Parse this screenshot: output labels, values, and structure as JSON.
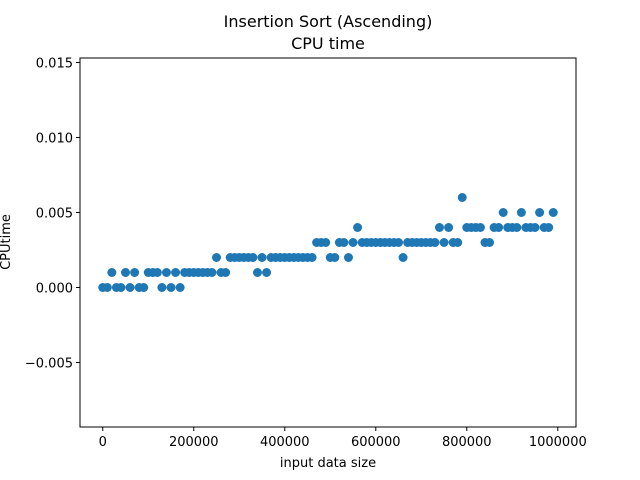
{
  "chart_data": {
    "type": "scatter",
    "title": "Insertion Sort (Ascending)",
    "subtitle": "CPU time",
    "xlabel": "input data size",
    "ylabel": "CPUtime",
    "xlim": [
      -50000,
      1040000
    ],
    "ylim": [
      -0.0093,
      0.0153
    ],
    "xticks": [
      0,
      200000,
      400000,
      600000,
      800000,
      1000000
    ],
    "xtick_labels": [
      "0",
      "200000",
      "400000",
      "600000",
      "800000",
      "1000000"
    ],
    "yticks": [
      -0.005,
      0.0,
      0.005,
      0.01,
      0.015
    ],
    "ytick_labels": [
      "−0.005",
      "0.000",
      "0.005",
      "0.010",
      "0.015"
    ],
    "grid": false,
    "marker_color": "#1f77b4",
    "points": [
      [
        0,
        0.0
      ],
      [
        10000,
        0.0
      ],
      [
        20000,
        0.001
      ],
      [
        30000,
        0.0
      ],
      [
        40000,
        0.0
      ],
      [
        50000,
        0.001
      ],
      [
        60000,
        0.0
      ],
      [
        70000,
        0.001
      ],
      [
        80000,
        0.0
      ],
      [
        90000,
        0.0
      ],
      [
        100000,
        0.001
      ],
      [
        110000,
        0.001
      ],
      [
        120000,
        0.001
      ],
      [
        130000,
        0.0
      ],
      [
        140000,
        0.001
      ],
      [
        150000,
        0.0
      ],
      [
        160000,
        0.001
      ],
      [
        170000,
        0.0
      ],
      [
        180000,
        0.001
      ],
      [
        190000,
        0.001
      ],
      [
        200000,
        0.001
      ],
      [
        210000,
        0.001
      ],
      [
        220000,
        0.001
      ],
      [
        230000,
        0.001
      ],
      [
        240000,
        0.001
      ],
      [
        250000,
        0.002
      ],
      [
        260000,
        0.001
      ],
      [
        270000,
        0.001
      ],
      [
        280000,
        0.002
      ],
      [
        290000,
        0.002
      ],
      [
        300000,
        0.002
      ],
      [
        310000,
        0.002
      ],
      [
        320000,
        0.002
      ],
      [
        330000,
        0.002
      ],
      [
        340000,
        0.001
      ],
      [
        350000,
        0.002
      ],
      [
        360000,
        0.001
      ],
      [
        370000,
        0.002
      ],
      [
        380000,
        0.002
      ],
      [
        390000,
        0.002
      ],
      [
        400000,
        0.002
      ],
      [
        410000,
        0.002
      ],
      [
        420000,
        0.002
      ],
      [
        430000,
        0.002
      ],
      [
        440000,
        0.002
      ],
      [
        450000,
        0.002
      ],
      [
        460000,
        0.002
      ],
      [
        470000,
        0.003
      ],
      [
        480000,
        0.003
      ],
      [
        490000,
        0.003
      ],
      [
        500000,
        0.002
      ],
      [
        510000,
        0.002
      ],
      [
        520000,
        0.003
      ],
      [
        530000,
        0.003
      ],
      [
        540000,
        0.002
      ],
      [
        550000,
        0.003
      ],
      [
        560000,
        0.004
      ],
      [
        570000,
        0.003
      ],
      [
        580000,
        0.003
      ],
      [
        590000,
        0.003
      ],
      [
        600000,
        0.003
      ],
      [
        610000,
        0.003
      ],
      [
        620000,
        0.003
      ],
      [
        630000,
        0.003
      ],
      [
        640000,
        0.003
      ],
      [
        650000,
        0.003
      ],
      [
        660000,
        0.002
      ],
      [
        670000,
        0.003
      ],
      [
        680000,
        0.003
      ],
      [
        690000,
        0.003
      ],
      [
        700000,
        0.003
      ],
      [
        710000,
        0.003
      ],
      [
        720000,
        0.003
      ],
      [
        730000,
        0.003
      ],
      [
        740000,
        0.004
      ],
      [
        750000,
        0.003
      ],
      [
        760000,
        0.004
      ],
      [
        770000,
        0.003
      ],
      [
        780000,
        0.003
      ],
      [
        790000,
        0.006
      ],
      [
        800000,
        0.004
      ],
      [
        810000,
        0.004
      ],
      [
        820000,
        0.004
      ],
      [
        830000,
        0.004
      ],
      [
        840000,
        0.003
      ],
      [
        850000,
        0.003
      ],
      [
        860000,
        0.004
      ],
      [
        870000,
        0.004
      ],
      [
        880000,
        0.005
      ],
      [
        890000,
        0.004
      ],
      [
        900000,
        0.004
      ],
      [
        910000,
        0.004
      ],
      [
        920000,
        0.005
      ],
      [
        930000,
        0.004
      ],
      [
        940000,
        0.004
      ],
      [
        950000,
        0.004
      ],
      [
        960000,
        0.005
      ],
      [
        970000,
        0.004
      ],
      [
        980000,
        0.004
      ],
      [
        990000,
        0.005
      ]
    ]
  }
}
